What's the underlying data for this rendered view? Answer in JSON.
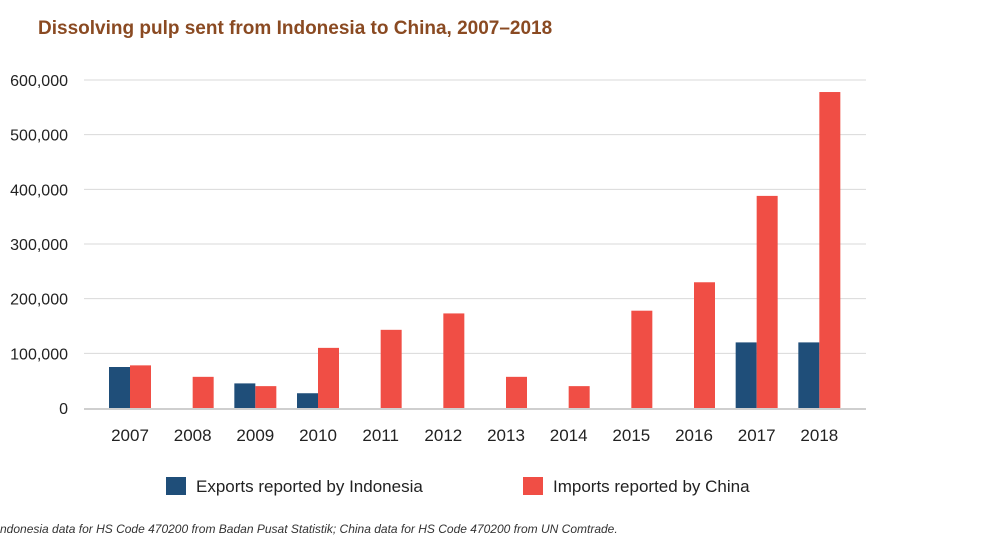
{
  "chart_data": {
    "type": "bar",
    "title": "Dissolving pulp sent from Indonesia to China, 2007–2018",
    "categories": [
      "2007",
      "2008",
      "2009",
      "2010",
      "2011",
      "2012",
      "2013",
      "2014",
      "2015",
      "2016",
      "2017",
      "2018"
    ],
    "y_ticks": [
      "0",
      "100,000",
      "200,000",
      "300,000",
      "400,000",
      "500,000",
      "600,000"
    ],
    "y_tick_values": [
      0,
      100000,
      200000,
      300000,
      400000,
      500000,
      600000
    ],
    "ylim": [
      0,
      600000
    ],
    "grid": true,
    "legend_position": "bottom",
    "series": [
      {
        "name": "Exports reported by Indonesia",
        "color": "#1f4e79",
        "values": [
          75000,
          0,
          45000,
          27000,
          0,
          0,
          0,
          0,
          0,
          0,
          120000,
          120000
        ]
      },
      {
        "name": "Imports reported by China",
        "color": "#f04e45",
        "values": [
          78000,
          57000,
          40000,
          110000,
          143000,
          173000,
          57000,
          40000,
          178000,
          230000,
          388000,
          578000
        ]
      }
    ]
  },
  "source": "ndonesia data for HS Code 470200 from Badan Pusat Statistik; China data for HS Code 470200 from UN Comtrade."
}
